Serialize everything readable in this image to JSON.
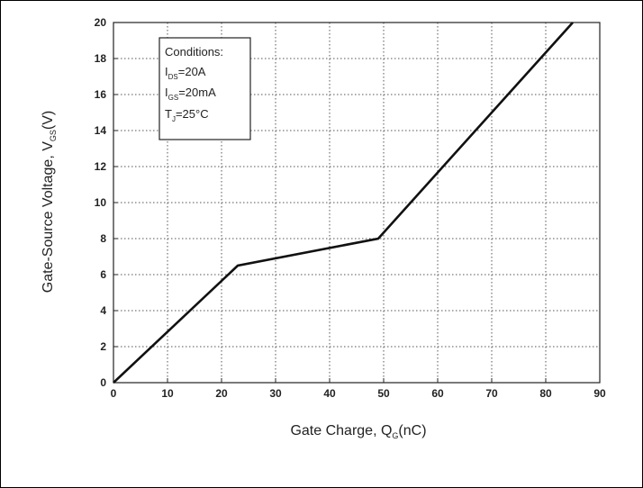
{
  "chart_data": {
    "type": "line",
    "title": "",
    "xlabel": {
      "main": "Gate Charge, Q",
      "sub": "G",
      "tail": "(nC)"
    },
    "ylabel": {
      "main": "Gate-Source Voltage, V",
      "sub": "GS",
      "tail": "(V)"
    },
    "xlim": [
      0,
      90
    ],
    "ylim": [
      0,
      20
    ],
    "x_ticks": [
      0,
      10,
      20,
      30,
      40,
      50,
      60,
      70,
      80,
      90
    ],
    "y_ticks": [
      0,
      2,
      4,
      6,
      8,
      10,
      12,
      14,
      16,
      18,
      20
    ],
    "grid": true,
    "series": [
      {
        "x": [
          0,
          23,
          49,
          85
        ],
        "y": [
          0,
          6.5,
          8,
          20
        ]
      }
    ],
    "conditions": {
      "title": "Conditions:",
      "lines": [
        {
          "main": "I",
          "sub": "DS",
          "tail": "=20A"
        },
        {
          "main": "I",
          "sub": "GS",
          "tail": "=20mA"
        },
        {
          "main": "T",
          "sub": "J",
          "tail": "=25°C"
        }
      ]
    }
  },
  "colors": {
    "line": "#111111",
    "grid": "#555555",
    "axis": "#222222"
  }
}
